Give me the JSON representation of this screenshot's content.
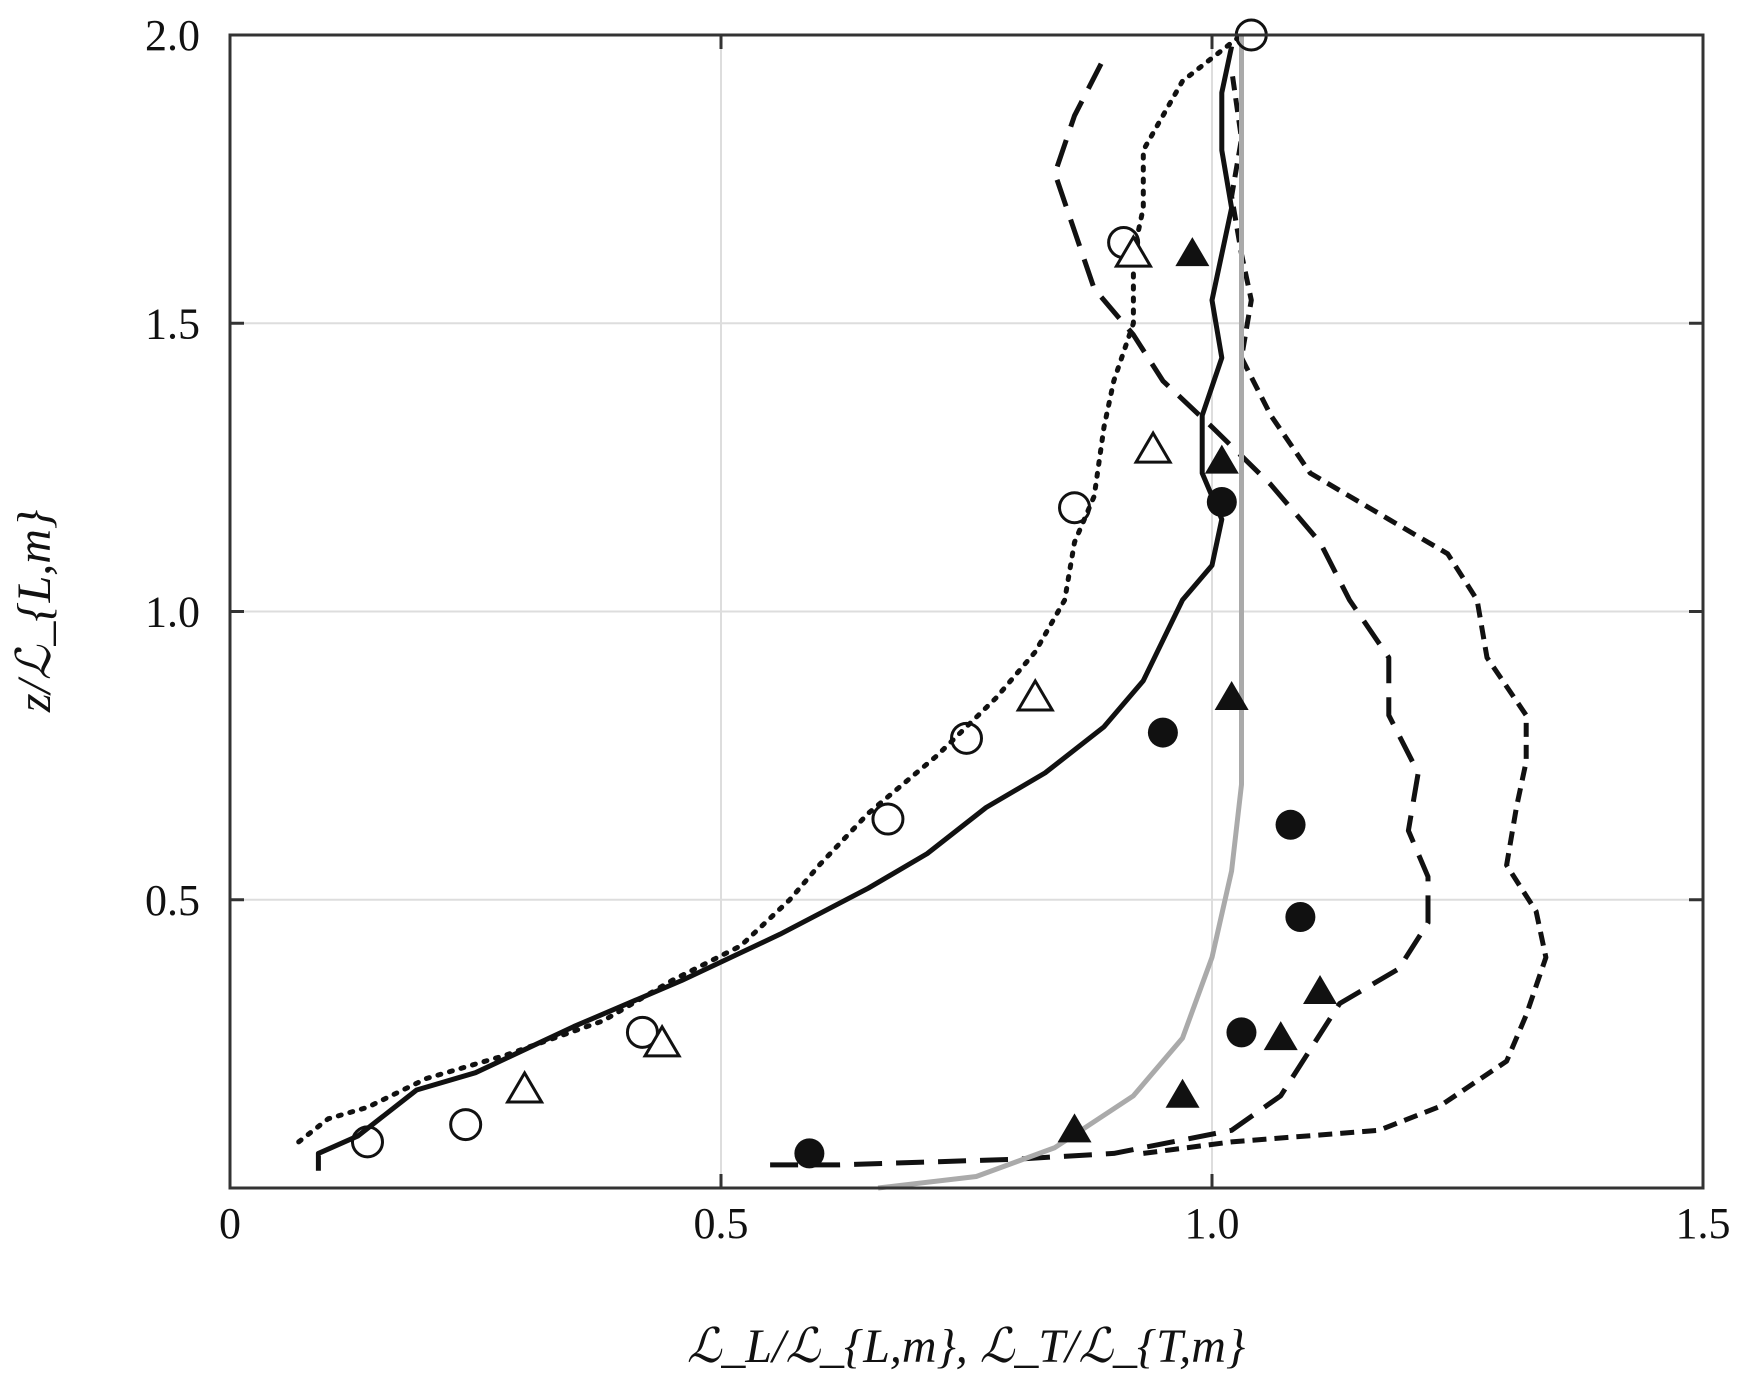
{
  "chart_data": {
    "type": "line",
    "title": "",
    "xlabel": "ℒ_L/ℒ_{L,m}, ℒ_T/ℒ_{T,m}",
    "ylabel": "z/ℒ_{L,m}",
    "xlim": [
      0,
      1.5
    ],
    "ylim": [
      0,
      2.0
    ],
    "x_ticks": [
      0,
      0.5,
      1.0,
      1.5
    ],
    "y_ticks": [
      0.5,
      1.0,
      1.5,
      2.0
    ],
    "x_tick_labels": [
      "0",
      "0.5",
      "1.0",
      "1.5"
    ],
    "y_tick_labels": [
      "0.5",
      "1.0",
      "1.5",
      "2.0"
    ],
    "grid": true,
    "legend": "none",
    "series": [
      {
        "style": "dotted",
        "color": "#111111",
        "points": [
          [
            0.07,
            0.08
          ],
          [
            0.1,
            0.12
          ],
          [
            0.14,
            0.14
          ],
          [
            0.2,
            0.19
          ],
          [
            0.28,
            0.23
          ],
          [
            0.38,
            0.29
          ],
          [
            0.45,
            0.36
          ],
          [
            0.52,
            0.42
          ],
          [
            0.57,
            0.5
          ],
          [
            0.6,
            0.56
          ],
          [
            0.65,
            0.65
          ],
          [
            0.72,
            0.75
          ],
          [
            0.78,
            0.85
          ],
          [
            0.82,
            0.93
          ],
          [
            0.85,
            1.02
          ],
          [
            0.86,
            1.12
          ],
          [
            0.88,
            1.2
          ],
          [
            0.89,
            1.32
          ],
          [
            0.9,
            1.4
          ],
          [
            0.92,
            1.5
          ],
          [
            0.92,
            1.62
          ],
          [
            0.93,
            1.7
          ],
          [
            0.93,
            1.8
          ],
          [
            0.97,
            1.92
          ],
          [
            1.03,
            2.0
          ]
        ]
      },
      {
        "style": "solid",
        "color": "#111111",
        "points": [
          [
            0.09,
            0.03
          ],
          [
            0.09,
            0.06
          ],
          [
            0.13,
            0.09
          ],
          [
            0.19,
            0.17
          ],
          [
            0.25,
            0.2
          ],
          [
            0.35,
            0.28
          ],
          [
            0.46,
            0.36
          ],
          [
            0.56,
            0.44
          ],
          [
            0.65,
            0.52
          ],
          [
            0.71,
            0.58
          ],
          [
            0.77,
            0.66
          ],
          [
            0.83,
            0.72
          ],
          [
            0.89,
            0.8
          ],
          [
            0.93,
            0.88
          ],
          [
            0.95,
            0.95
          ],
          [
            0.97,
            1.02
          ],
          [
            1.0,
            1.08
          ],
          [
            1.01,
            1.16
          ],
          [
            0.99,
            1.24
          ],
          [
            0.99,
            1.34
          ],
          [
            1.01,
            1.44
          ],
          [
            1.0,
            1.54
          ],
          [
            1.01,
            1.62
          ],
          [
            1.02,
            1.7
          ],
          [
            1.01,
            1.8
          ],
          [
            1.01,
            1.9
          ],
          [
            1.02,
            1.98
          ]
        ]
      },
      {
        "style": "long-dashed",
        "color": "#111111",
        "points": [
          [
            0.55,
            0.04
          ],
          [
            0.62,
            0.04
          ],
          [
            0.8,
            0.05
          ],
          [
            0.9,
            0.06
          ],
          [
            1.02,
            0.1
          ],
          [
            1.07,
            0.16
          ],
          [
            1.1,
            0.24
          ],
          [
            1.13,
            0.32
          ],
          [
            1.19,
            0.38
          ],
          [
            1.22,
            0.46
          ],
          [
            1.22,
            0.54
          ],
          [
            1.2,
            0.62
          ],
          [
            1.21,
            0.72
          ],
          [
            1.18,
            0.82
          ],
          [
            1.18,
            0.92
          ],
          [
            1.14,
            1.02
          ],
          [
            1.11,
            1.12
          ],
          [
            1.06,
            1.22
          ],
          [
            1.0,
            1.32
          ],
          [
            0.95,
            1.4
          ],
          [
            0.92,
            1.48
          ],
          [
            0.88,
            1.56
          ],
          [
            0.86,
            1.66
          ],
          [
            0.84,
            1.76
          ],
          [
            0.86,
            1.86
          ],
          [
            0.89,
            1.96
          ]
        ]
      },
      {
        "style": "short-dashed",
        "color": "#111111",
        "points": [
          [
            0.93,
            0.06
          ],
          [
            1.02,
            0.08
          ],
          [
            1.17,
            0.1
          ],
          [
            1.23,
            0.14
          ],
          [
            1.3,
            0.22
          ],
          [
            1.32,
            0.3
          ],
          [
            1.34,
            0.4
          ],
          [
            1.33,
            0.48
          ],
          [
            1.3,
            0.56
          ],
          [
            1.31,
            0.66
          ],
          [
            1.32,
            0.74
          ],
          [
            1.32,
            0.82
          ],
          [
            1.28,
            0.92
          ],
          [
            1.27,
            1.02
          ],
          [
            1.24,
            1.1
          ],
          [
            1.18,
            1.16
          ],
          [
            1.1,
            1.24
          ],
          [
            1.06,
            1.34
          ],
          [
            1.03,
            1.44
          ],
          [
            1.04,
            1.54
          ],
          [
            1.03,
            1.62
          ],
          [
            1.02,
            1.72
          ],
          [
            1.03,
            1.82
          ],
          [
            1.02,
            1.94
          ]
        ]
      },
      {
        "style": "solid",
        "color": "#aaaaaa",
        "points": [
          [
            0.66,
            0.0
          ],
          [
            0.76,
            0.02
          ],
          [
            0.84,
            0.07
          ],
          [
            0.92,
            0.16
          ],
          [
            0.97,
            0.26
          ],
          [
            1.0,
            0.4
          ],
          [
            1.02,
            0.55
          ],
          [
            1.03,
            0.7
          ],
          [
            1.03,
            0.9
          ],
          [
            1.03,
            1.1
          ],
          [
            1.03,
            1.4
          ],
          [
            1.03,
            1.7
          ],
          [
            1.03,
            2.0
          ]
        ]
      }
    ],
    "markers": [
      {
        "shape": "open-circle",
        "points": [
          [
            0.14,
            0.08
          ],
          [
            0.24,
            0.11
          ],
          [
            0.42,
            0.27
          ],
          [
            0.67,
            0.64
          ],
          [
            0.75,
            0.78
          ],
          [
            0.86,
            1.18
          ],
          [
            0.91,
            1.64
          ],
          [
            1.04,
            2.0
          ]
        ]
      },
      {
        "shape": "open-triangle",
        "points": [
          [
            0.3,
            0.17
          ],
          [
            0.44,
            0.25
          ],
          [
            0.82,
            0.85
          ],
          [
            0.94,
            1.28
          ],
          [
            0.92,
            1.62
          ]
        ]
      },
      {
        "shape": "filled-circle",
        "points": [
          [
            0.59,
            0.06
          ],
          [
            0.95,
            0.79
          ],
          [
            1.08,
            0.63
          ],
          [
            1.09,
            0.47
          ],
          [
            1.03,
            0.27
          ],
          [
            1.01,
            1.19
          ]
        ]
      },
      {
        "shape": "filled-triangle",
        "points": [
          [
            0.86,
            0.1
          ],
          [
            0.97,
            0.16
          ],
          [
            1.07,
            0.26
          ],
          [
            1.11,
            0.34
          ],
          [
            1.02,
            0.85
          ],
          [
            1.01,
            1.26
          ],
          [
            0.98,
            1.62
          ]
        ]
      }
    ]
  }
}
